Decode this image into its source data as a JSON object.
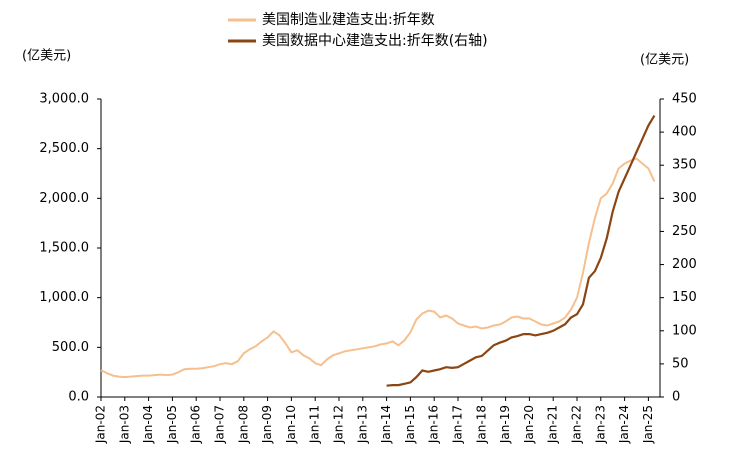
{
  "chart_data": {
    "type": "line",
    "y_label": "(亿美元)",
    "y2_label": "(亿美元)",
    "categories": [
      "Jan-02",
      null,
      null,
      null,
      "Jan-03",
      null,
      null,
      null,
      "Jan-04",
      null,
      null,
      null,
      "Jan-05",
      null,
      null,
      null,
      "Jan-06",
      null,
      null,
      null,
      "Jan-07",
      null,
      null,
      null,
      "Jan-08",
      null,
      null,
      null,
      "Jan-09",
      null,
      null,
      null,
      "Jan-10",
      null,
      null,
      null,
      "Jan-11",
      null,
      null,
      null,
      "Jan-12",
      null,
      null,
      null,
      "Jan-13",
      null,
      null,
      null,
      "Jan-14",
      null,
      null,
      null,
      "Jan-15",
      null,
      null,
      null,
      "Jan-16",
      null,
      null,
      null,
      "Jan-17",
      null,
      null,
      null,
      "Jan-18",
      null,
      null,
      null,
      "Jan-19",
      null,
      null,
      null,
      "Jan-20",
      null,
      null,
      null,
      "Jan-21",
      null,
      null,
      null,
      "Jan-22",
      null,
      null,
      null,
      "Jan-23",
      null,
      null,
      null,
      "Jan-24",
      null,
      null,
      null,
      "Jan-25",
      null
    ],
    "series": [
      {
        "name": "美国制造业建造支出:折年数",
        "color": "#f5c08e",
        "axis": "y",
        "values": [
          270,
          240,
          215,
          205,
          200,
          205,
          210,
          215,
          215,
          220,
          225,
          220,
          225,
          250,
          280,
          285,
          285,
          290,
          300,
          310,
          330,
          340,
          330,
          360,
          440,
          480,
          510,
          560,
          600,
          660,
          620,
          540,
          450,
          470,
          420,
          390,
          340,
          320,
          380,
          420,
          440,
          460,
          470,
          480,
          490,
          500,
          510,
          530,
          540,
          560,
          520,
          570,
          650,
          780,
          840,
          870,
          860,
          800,
          820,
          790,
          740,
          720,
          700,
          710,
          690,
          700,
          720,
          730,
          760,
          800,
          810,
          790,
          790,
          760,
          730,
          720,
          740,
          760,
          800,
          880,
          1000,
          1250,
          1550,
          1800,
          2000,
          2050,
          2150,
          2300,
          2350,
          2380,
          2400,
          2350,
          2300,
          2170
        ]
      },
      {
        "name": "美国数据中心建造支出:折年数(右轴)",
        "color": "#8b4513",
        "axis": "y2",
        "values": [
          null,
          null,
          null,
          null,
          null,
          null,
          null,
          null,
          null,
          null,
          null,
          null,
          null,
          null,
          null,
          null,
          null,
          null,
          null,
          null,
          null,
          null,
          null,
          null,
          null,
          null,
          null,
          null,
          null,
          null,
          null,
          null,
          null,
          null,
          null,
          null,
          null,
          null,
          null,
          null,
          null,
          null,
          null,
          null,
          null,
          null,
          null,
          null,
          17,
          18,
          18,
          20,
          22,
          30,
          40,
          38,
          40,
          42,
          45,
          44,
          45,
          50,
          55,
          60,
          62,
          70,
          78,
          82,
          85,
          90,
          92,
          95,
          95,
          93,
          95,
          97,
          100,
          105,
          110,
          120,
          125,
          140,
          180,
          190,
          210,
          240,
          280,
          310,
          330,
          350,
          370,
          390,
          410,
          425
        ]
      }
    ],
    "ylim": [
      0,
      3000
    ],
    "yticks": [
      {
        "value": 0,
        "label": "0.0"
      },
      {
        "value": 500,
        "label": "500.0"
      },
      {
        "value": 1000,
        "label": "1,000.0"
      },
      {
        "value": 1500,
        "label": "1,500.0"
      },
      {
        "value": 2000,
        "label": "2,000.0"
      },
      {
        "value": 2500,
        "label": "2,500.0"
      },
      {
        "value": 3000,
        "label": "3,000.0"
      }
    ],
    "y2lim": [
      0,
      450
    ],
    "y2ticks": [
      0,
      50,
      100,
      150,
      200,
      250,
      300,
      350,
      400,
      450
    ],
    "grid": false,
    "legend": "top"
  }
}
